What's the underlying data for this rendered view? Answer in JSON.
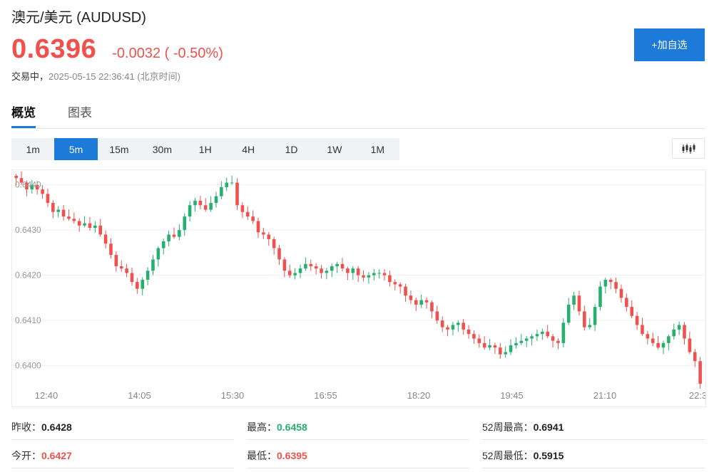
{
  "header": {
    "title": "澳元/美元 (AUDUSD)",
    "price": "0.6396",
    "change": "-0.0032 ( -0.50%)",
    "status": "交易中，",
    "timestamp": "2025-05-15 22:36:41 (北京时间)",
    "add_button": "+加自选"
  },
  "tabs": [
    {
      "label": "概览",
      "active": true
    },
    {
      "label": "图表",
      "active": false
    }
  ],
  "periods": [
    "1m",
    "5m",
    "15m",
    "30m",
    "1H",
    "4H",
    "1D",
    "1W",
    "1M"
  ],
  "active_period": "5m",
  "chart_type_icon": "candlestick-icon",
  "colors": {
    "up": "#26b06f",
    "down": "#f0514d",
    "accent": "#1e7ad8"
  },
  "stats": {
    "prev_close_label": "昨收：",
    "prev_close": "0.6428",
    "open_label": "今开：",
    "open": "0.6427",
    "high_label": "最高：",
    "high": "0.6458",
    "low_label": "最低：",
    "low": "0.6395",
    "w52_high_label": "52周最高：",
    "w52_high": "0.6941",
    "w52_low_label": "52周最低：",
    "w52_low": "0.5915"
  },
  "chart_data": {
    "type": "candlestick",
    "ylim": [
      0.6396,
      0.6442
    ],
    "y_ticks": [
      "0.6440",
      "0.6430",
      "0.6420",
      "0.6410",
      "0.6400"
    ],
    "x_ticks": [
      "12:40",
      "14:05",
      "15:30",
      "16:55",
      "18:20",
      "19:45",
      "21:10",
      "22:3"
    ],
    "grid": true,
    "series": [
      {
        "x": "12:40",
        "points": [
          0.64415,
          0.64405,
          0.6439,
          0.644,
          0.6439,
          0.6438,
          0.6436,
          0.6434,
          0.64345,
          0.6433,
          0.64325,
          0.6432,
          0.6431,
          0.64315,
          0.64305,
          0.6431,
          0.6429,
          0.6427,
          0.64245,
          0.6422
        ]
      },
      {
        "x": "14:05",
        "points": [
          0.64215,
          0.64205,
          0.64185,
          0.6417,
          0.6419,
          0.6421,
          0.64235,
          0.6426,
          0.64275,
          0.6429,
          0.64285,
          0.643,
          0.6433,
          0.64355,
          0.64365,
          0.64355,
          0.64345,
          0.6436,
          0.64375,
          0.64395,
          0.64405
        ]
      },
      {
        "x": "15:30",
        "points": [
          0.64405,
          0.64355,
          0.6434,
          0.6433,
          0.6432,
          0.64295,
          0.6429,
          0.6428,
          0.6426,
          0.64235,
          0.6421,
          0.642,
          0.64205,
          0.64215,
          0.64225,
          0.6422,
          0.64215,
          0.64205,
          0.6421,
          0.6422,
          0.64225,
          0.64215,
          0.64205
        ]
      },
      {
        "x": "16:55",
        "points": [
          0.64215,
          0.642,
          0.64195,
          0.642,
          0.64205,
          0.64205,
          0.642,
          0.64185,
          0.6418,
          0.64175,
          0.64155,
          0.64145,
          0.64135,
          0.64145,
          0.6414,
          0.6412,
          0.641,
          0.64085,
          0.6408,
          0.6409,
          0.64095,
          0.6408,
          0.6407
        ]
      },
      {
        "x": "19:45",
        "points": [
          0.6406,
          0.6405,
          0.6404,
          0.64045,
          0.6404,
          0.64025,
          0.6403,
          0.64045,
          0.6405,
          0.64055,
          0.6406,
          0.64065,
          0.6407,
          0.64075,
          0.64065,
          0.64055,
          0.6405,
          0.64095,
          0.64135,
          0.64155,
          0.6412,
          0.64085,
          0.6409,
          0.6413,
          0.64175,
          0.6419,
          0.64185,
          0.6417,
          0.6415
        ]
      },
      {
        "x": "21:10",
        "points": [
          0.6413,
          0.6411,
          0.6409,
          0.6407,
          0.6406,
          0.6405,
          0.6404,
          0.6405,
          0.64065,
          0.6408,
          0.6409,
          0.6406,
          0.6403,
          0.6401,
          0.6396
        ]
      }
    ]
  }
}
